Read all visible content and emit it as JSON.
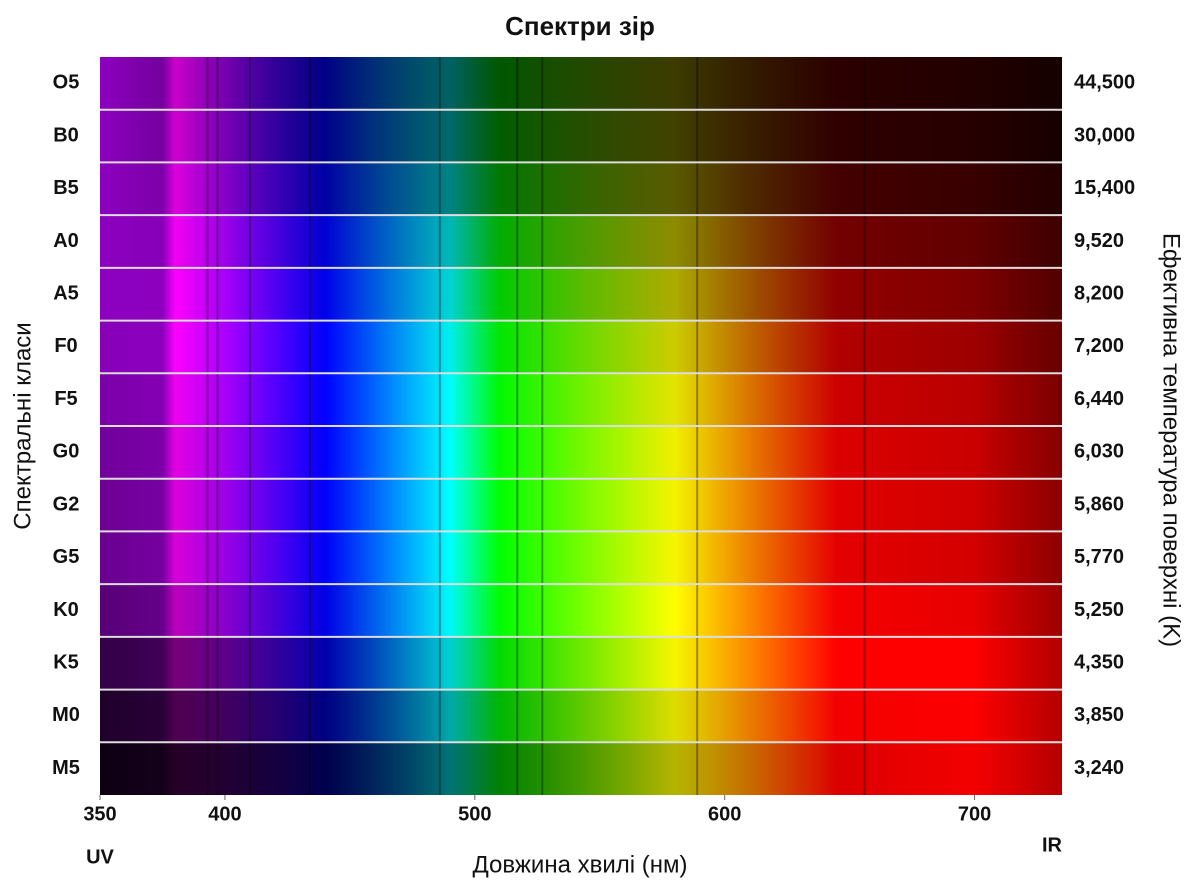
{
  "chart_data": {
    "type": "spectra",
    "title": "Спектри зір",
    "categories": [
      "O5",
      "B0",
      "B5",
      "A0",
      "A5",
      "F0",
      "F5",
      "G0",
      "G2",
      "G5",
      "K0",
      "K5",
      "M0",
      "M5"
    ],
    "values": [
      44500,
      30000,
      15400,
      9520,
      8200,
      7200,
      6440,
      6030,
      5860,
      5770,
      5250,
      4350,
      3850,
      3240
    ],
    "value_labels": [
      "44,500",
      "30,000",
      "15,400",
      "9,520",
      "8,200",
      "7,200",
      "6,440",
      "6,030",
      "5,860",
      "5,770",
      "5,250",
      "4,350",
      "3,850",
      "3,240"
    ],
    "y_label": "Спектральні класи",
    "y2_label": "Ефективна температура поверхні (K)",
    "x_label": "Довжина хвилі (нм)",
    "x_start_label": "UV",
    "x_end_label": "IR",
    "xlim": [
      350,
      735
    ],
    "xticks": [
      350,
      400,
      500,
      600,
      700
    ]
  }
}
